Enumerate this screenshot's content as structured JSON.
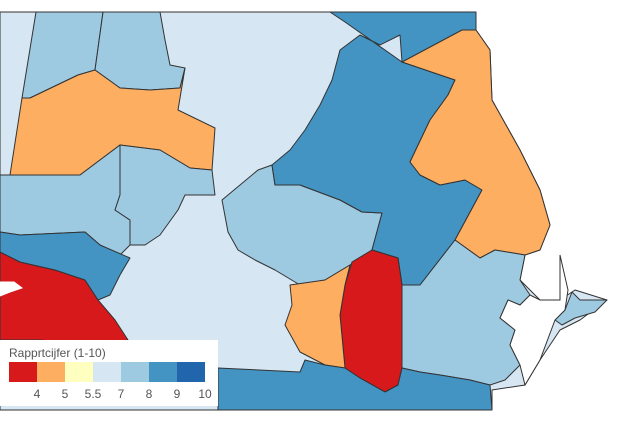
{
  "legend": {
    "title": "Rapprtcijfer (1-10)",
    "ticks": [
      "4",
      "5",
      "5.5",
      "7",
      "8",
      "9",
      "10"
    ],
    "swatches": [
      {
        "color": "#d7191c",
        "range": [
          null,
          4
        ]
      },
      {
        "color": "#fdae61",
        "range": [
          4,
          5
        ]
      },
      {
        "color": "#ffffbf",
        "range": [
          5,
          5.5
        ]
      },
      {
        "color": "#d6e6f2",
        "range": [
          5.5,
          7
        ]
      },
      {
        "color": "#9ecae1",
        "range": [
          7,
          8
        ]
      },
      {
        "color": "#4393c3",
        "range": [
          8,
          9
        ]
      },
      {
        "color": "#2166ac",
        "range": [
          9,
          10
        ]
      }
    ]
  },
  "colors": {
    "very_light_blue": "#d6e6f2",
    "light_blue": "#9ecae1",
    "mid_blue": "#4393c3",
    "orange": "#fdae61",
    "red": "#d7191c",
    "border": "#333333"
  }
}
